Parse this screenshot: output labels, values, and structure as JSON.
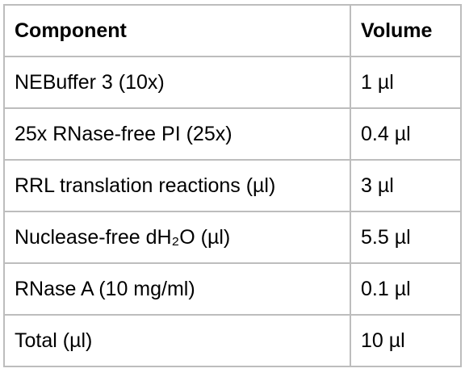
{
  "table": {
    "header": [
      "Component",
      "Volume"
    ],
    "rows": [
      [
        "NEBuffer 3 (10x)",
        "1 µl"
      ],
      [
        "25x RNase-free PI (25x)",
        "0.4 µl"
      ],
      [
        "RRL translation reactions (µl)",
        "3 µl"
      ],
      [
        "Nuclease-free dH₂O (µl)",
        "5.5 µl"
      ],
      [
        "RNase A (10 mg/ml)",
        "0.1 µl"
      ],
      [
        "Total (µl)",
        "10 µl"
      ]
    ]
  }
}
